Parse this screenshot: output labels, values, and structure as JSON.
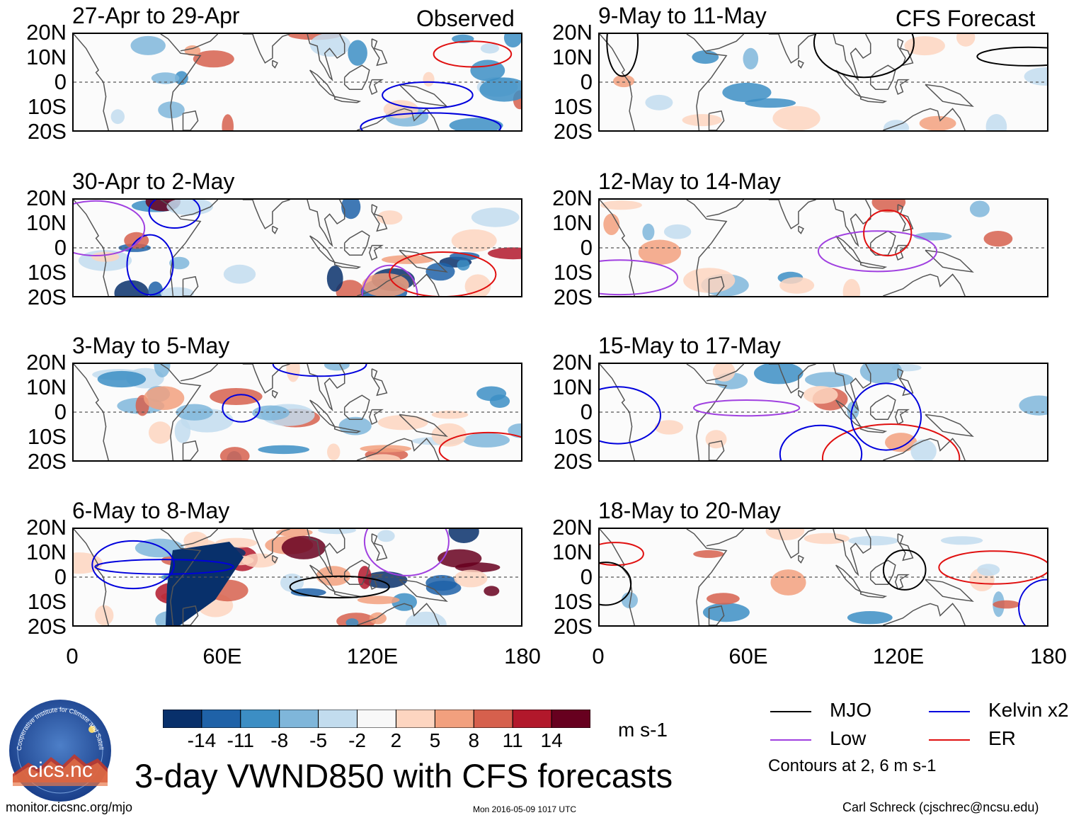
{
  "chart_data": {
    "type": "heatmap",
    "title": "3-day VWND850 with CFS forecasts",
    "variable": "VWND850",
    "units": "m s-1",
    "x_axis": {
      "range": [
        0,
        180
      ],
      "tick_labels": [
        "0",
        "60E",
        "120E",
        "180"
      ]
    },
    "y_axis": {
      "range": [
        -20,
        20
      ],
      "tick_labels": [
        "20N",
        "10N",
        "0",
        "10S",
        "20S"
      ]
    },
    "colorbar": {
      "labels": [
        "-14",
        "-11",
        "-8",
        "-5",
        "-2",
        "2",
        "5",
        "8",
        "11",
        "14"
      ],
      "colors": [
        "#08306b",
        "#1f62a8",
        "#3c8ec4",
        "#7fb6da",
        "#c2dcee",
        "#f8f8f8",
        "#fdd5c0",
        "#f2a07e",
        "#d6604d",
        "#b2182b",
        "#67001f"
      ]
    },
    "sections": {
      "observed": "Observed",
      "forecast": "CFS Forecast"
    },
    "panels": [
      {
        "title": "27-Apr to 29-Apr",
        "section": "observed"
      },
      {
        "title": "30-Apr to 2-May",
        "section": "observed"
      },
      {
        "title": "3-May to 5-May",
        "section": "observed"
      },
      {
        "title": "6-May to 8-May",
        "section": "observed"
      },
      {
        "title": "9-May to 11-May",
        "section": "forecast"
      },
      {
        "title": "12-May to 14-May",
        "section": "forecast"
      },
      {
        "title": "15-May to 17-May",
        "section": "forecast"
      },
      {
        "title": "18-May to 20-May",
        "section": "forecast"
      }
    ],
    "legend": [
      {
        "label": "MJO",
        "color": "#000000"
      },
      {
        "label": "Kelvin x2",
        "color": "#0000dd"
      },
      {
        "label": "Low",
        "color": "#a040e0"
      },
      {
        "label": "ER",
        "color": "#e01010"
      }
    ],
    "contour_note": "Contours at 2, 6 m s-1"
  },
  "logo": {
    "text": "cics.nc",
    "ring_text": "Cooperative Institute for Climate and Satellites"
  },
  "footer": {
    "url": "monitor.cicsnc.org/mjo",
    "date": "Mon 2016-05-09 1017 UTC",
    "author": "Carl Schreck (cjschrec@ncsu.edu)"
  }
}
